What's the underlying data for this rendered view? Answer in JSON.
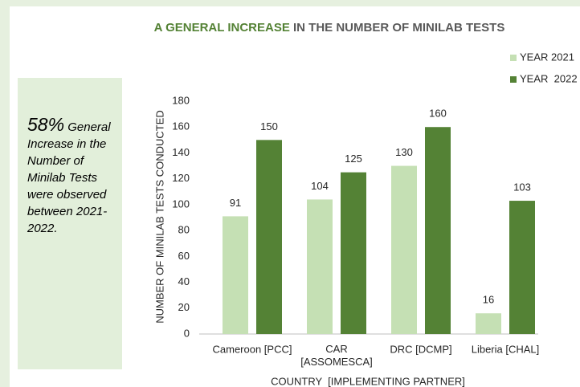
{
  "chart_data": {
    "type": "bar",
    "title_parts": [
      "A GENERAL INCREASE",
      "IN THE NUMBER OF MINILAB TESTS"
    ],
    "callout": {
      "highlight": "58%",
      "text": "General Increase in the Number of Minilab Tests were observed between 2021-2022."
    },
    "categories": [
      "Cameroon [PCC]",
      "CAR\n[ASSOMESCA]",
      "DRC [DCMP]",
      "Liberia [CHAL]"
    ],
    "series": [
      {
        "name": "YEAR 2021",
        "color": "#c5e0b4",
        "values": [
          91,
          104,
          130,
          16
        ]
      },
      {
        "name": "YEAR  2022",
        "color": "#548235",
        "values": [
          150,
          125,
          160,
          103
        ]
      }
    ],
    "x_label": "COUNTRY  [IMPLEMENTING PARTNER]",
    "y_label": "NUMBER OF MINILAB TESTS CONDUCTED",
    "ylim": [
      0,
      180
    ],
    "yticks": [
      0,
      20,
      40,
      60,
      80,
      100,
      120,
      140,
      160,
      180
    ],
    "grid": false,
    "legend": "top-right"
  }
}
